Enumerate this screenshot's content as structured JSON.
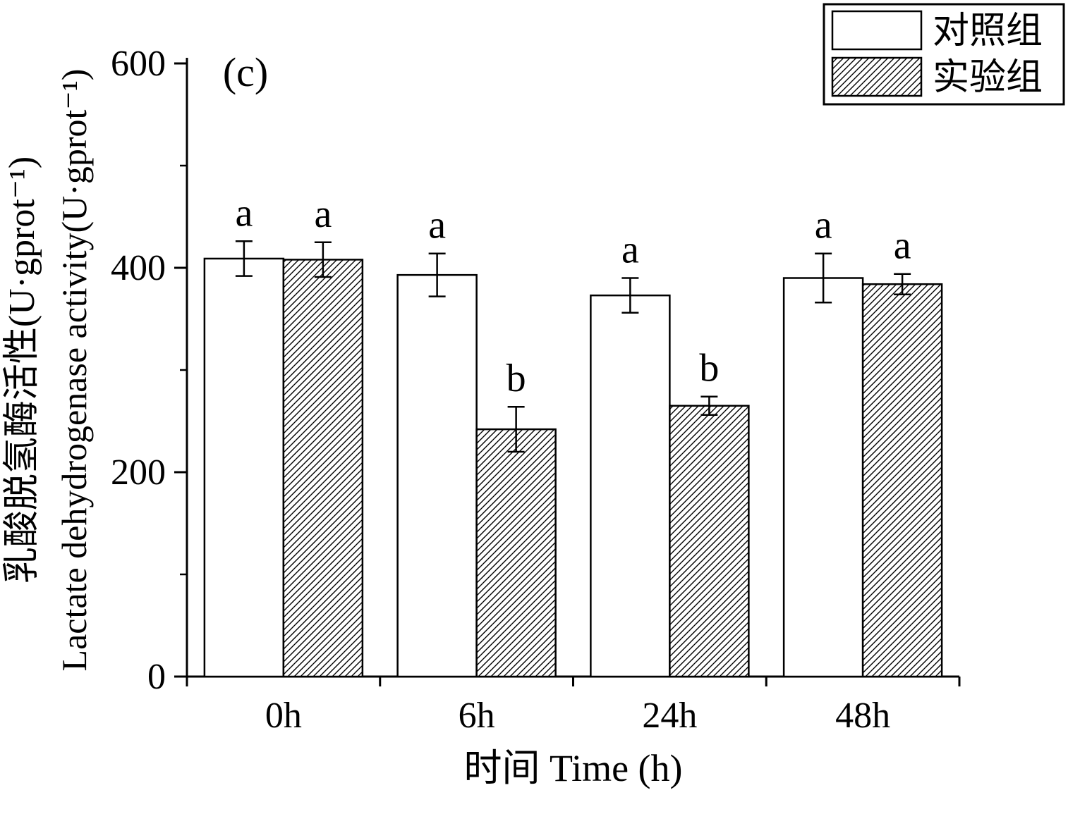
{
  "panel_label": "(c)",
  "legend": {
    "items": [
      {
        "label": "对照组",
        "swatch": "solid-white"
      },
      {
        "label": "实验组",
        "swatch": "diagonal-hatch"
      }
    ]
  },
  "axis": {
    "xlabel": "时间 Time (h)",
    "ylabel_cn": "乳酸脱氢酶活性(U·gprot⁻¹)",
    "ylabel_en": "Lactate dehydrogenase activity(U·gprot⁻¹)"
  },
  "colors": {
    "axis": "#000000",
    "bar_fill_control": "#ffffff",
    "bar_stroke": "#000000",
    "hatch_line": "#000000",
    "background": "#ffffff"
  },
  "chart_data": {
    "type": "bar",
    "title": "",
    "xlabel": "时间 Time (h)",
    "ylabel": "乳酸脱氢酶活性(U·gprot⁻¹) / Lactate dehydrogenase activity(U·gprot⁻¹)",
    "categories": [
      "0h",
      "6h",
      "24h",
      "48h"
    ],
    "series": [
      {
        "name": "对照组",
        "pattern": "solid-white",
        "values": [
          409,
          393,
          373,
          390
        ],
        "errors": [
          17,
          21,
          17,
          24
        ],
        "letters": [
          "a",
          "a",
          "a",
          "a"
        ]
      },
      {
        "name": "实验组",
        "pattern": "diagonal-hatch",
        "values": [
          408,
          242,
          265,
          384
        ],
        "errors": [
          17,
          22,
          9,
          10
        ],
        "letters": [
          "a",
          "b",
          "b",
          "a"
        ]
      }
    ],
    "ylim": [
      0,
      600
    ],
    "yticks": [
      0,
      200,
      400,
      600
    ],
    "yminorticks": [
      100,
      300,
      500
    ],
    "grid": false,
    "legend_position": "top-right",
    "error_bars": true
  }
}
